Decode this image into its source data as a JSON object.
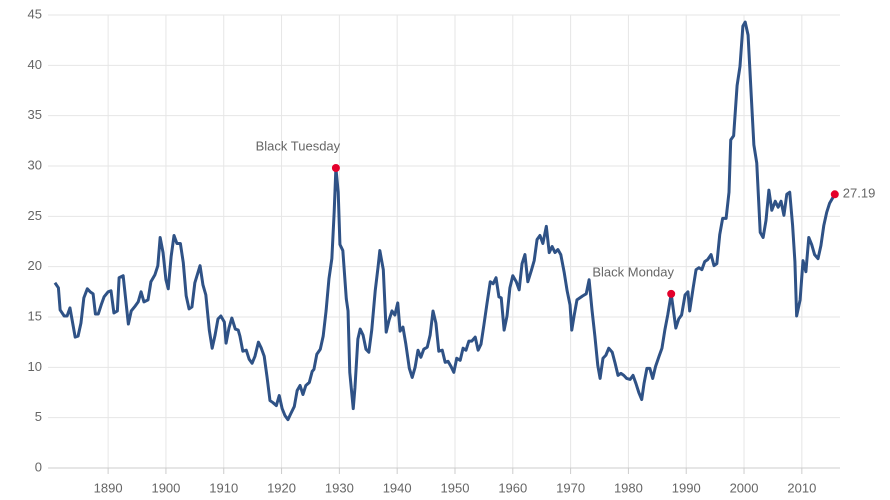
{
  "chart_data": {
    "type": "line",
    "color": "#2f5286",
    "marker_color": "#e4002b",
    "grid": true,
    "xlim": [
      1879.6,
      2016.6
    ],
    "xticks": [
      1890,
      1900,
      1910,
      1920,
      1930,
      1940,
      1950,
      1960,
      1970,
      1980,
      1990,
      2000,
      2010
    ],
    "ylim": [
      0,
      45
    ],
    "yticks": [
      0,
      5,
      10,
      15,
      20,
      25,
      30,
      35,
      40,
      45
    ],
    "x": [
      1880.8,
      1881.4,
      1881.7,
      1882.4,
      1882.9,
      1883.4,
      1884.3,
      1884.8,
      1885.3,
      1885.8,
      1886.4,
      1886.9,
      1887.4,
      1887.8,
      1888.3,
      1888.8,
      1889.3,
      1890,
      1890.5,
      1891,
      1891.6,
      1891.9,
      1892.6,
      1893.5,
      1894,
      1894.7,
      1895.2,
      1895.7,
      1896.2,
      1896.9,
      1897.4,
      1898.1,
      1898.6,
      1899,
      1899.5,
      1900,
      1900.4,
      1900.9,
      1901.4,
      1901.9,
      1902.5,
      1903,
      1903.5,
      1904,
      1904.5,
      1905,
      1905.9,
      1906.4,
      1906.9,
      1907.5,
      1908,
      1908.5,
      1909,
      1909.5,
      1910.1,
      1910.4,
      1910.9,
      1911.4,
      1912,
      1912.5,
      1912.8,
      1913.3,
      1913.9,
      1914.4,
      1914.9,
      1915.4,
      1916,
      1916.5,
      1917,
      1917.5,
      1918,
      1918.5,
      1919.1,
      1919.6,
      1920.1,
      1920.6,
      1921.1,
      1921.6,
      1922.2,
      1922.7,
      1923.2,
      1923.7,
      1924.2,
      1924.8,
      1925.3,
      1925.6,
      1926.1,
      1926.7,
      1927.2,
      1927.7,
      1928.2,
      1928.7,
      1929.1,
      1929.4,
      1929.8,
      1930.1,
      1930.6,
      1931.2,
      1931.5,
      1931.8,
      1932.4,
      1932.7,
      1933.2,
      1933.6,
      1934.1,
      1934.6,
      1935.1,
      1935.6,
      1936.2,
      1936.7,
      1937,
      1937.6,
      1938.1,
      1938.6,
      1939.1,
      1939.6,
      1940.1,
      1940.5,
      1941,
      1941.5,
      1942.1,
      1942.6,
      1943.1,
      1943.6,
      1944.1,
      1944.6,
      1945.2,
      1945.7,
      1946.2,
      1946.7,
      1947.2,
      1947.8,
      1948.3,
      1948.8,
      1949.3,
      1949.8,
      1950.3,
      1950.9,
      1951.4,
      1951.9,
      1952.4,
      1952.9,
      1953.5,
      1954,
      1954.5,
      1955,
      1955.5,
      1956.1,
      1956.6,
      1957.1,
      1957.6,
      1958,
      1958.5,
      1959,
      1959.5,
      1960,
      1960.6,
      1961.1,
      1961.6,
      1962.1,
      1962.6,
      1963.2,
      1963.7,
      1964.2,
      1964.7,
      1965.2,
      1965.8,
      1966.3,
      1966.8,
      1967.3,
      1967.8,
      1968.3,
      1968.9,
      1969.4,
      1969.9,
      1970.2,
      1970.6,
      1971.1,
      1971.6,
      1972.1,
      1972.7,
      1973.2,
      1973.7,
      1974.2,
      1974.7,
      1975.1,
      1975.6,
      1976.1,
      1976.6,
      1977.2,
      1977.7,
      1978.2,
      1978.7,
      1979.2,
      1979.7,
      1980.3,
      1980.8,
      1981.3,
      1981.8,
      1982.3,
      1982.7,
      1983.2,
      1983.7,
      1984.2,
      1984.7,
      1985.3,
      1985.8,
      1986.3,
      1986.8,
      1987.4,
      1988.2,
      1988.7,
      1989.2,
      1989.8,
      1990.3,
      1990.6,
      1991.2,
      1991.7,
      1992.2,
      1992.7,
      1993.2,
      1993.7,
      1994.3,
      1994.8,
      1995.3,
      1995.8,
      1996.3,
      1996.9,
      1997.4,
      1997.7,
      1998.2,
      1998.8,
      1999.3,
      1999.8,
      2000.2,
      2000.7,
      2001.2,
      2001.7,
      2002.2,
      2002.8,
      2003.3,
      2003.8,
      2004.3,
      2004.8,
      2005.4,
      2005.9,
      2006.4,
      2006.9,
      2007.4,
      2007.9,
      2008.4,
      2008.8,
      2009.1,
      2009.7,
      2010.2,
      2010.7,
      2011.2,
      2011.7,
      2012.2,
      2012.8,
      2013.3,
      2013.8,
      2014.3,
      2014.8,
      2015.7
    ],
    "values": [
      18.4,
      17.9,
      15.7,
      15.1,
      15.1,
      15.9,
      13,
      13.1,
      14.4,
      16.9,
      17.8,
      17.5,
      17.3,
      15.3,
      15.3,
      16.2,
      17,
      17.5,
      17.6,
      15.4,
      15.6,
      18.9,
      19.1,
      14.3,
      15.6,
      16.1,
      16.5,
      17.5,
      16.5,
      16.7,
      18.5,
      19.2,
      20.1,
      22.9,
      21.4,
      18.7,
      17.8,
      21,
      23.1,
      22.3,
      22.3,
      20.4,
      17.1,
      15.8,
      16,
      18.4,
      20.1,
      18.2,
      17.2,
      13.7,
      11.9,
      13.2,
      14.8,
      15.1,
      14.5,
      12.4,
      13.9,
      14.9,
      13.8,
      13.7,
      13.1,
      11.6,
      11.7,
      10.8,
      10.4,
      11.1,
      12.5,
      11.9,
      11.1,
      9,
      6.7,
      6.5,
      6.2,
      7.2,
      5.9,
      5.2,
      4.8,
      5.4,
      6.1,
      7.7,
      8.2,
      7.3,
      8.2,
      8.5,
      9.6,
      9.8,
      11.3,
      11.8,
      13.1,
      15.6,
      18.8,
      20.8,
      25.4,
      29.8,
      27.4,
      22.2,
      21.6,
      16.8,
      15.6,
      9.5,
      5.9,
      8,
      12.8,
      13.8,
      13.2,
      11.8,
      11.5,
      13.7,
      17.6,
      20,
      21.6,
      19.7,
      13.5,
      14.7,
      15.6,
      15.2,
      16.4,
      13.6,
      14,
      12.3,
      9.9,
      9,
      10,
      11.7,
      11,
      11.8,
      12,
      13.2,
      15.6,
      14.4,
      11.6,
      11.7,
      10.5,
      10.6,
      10.1,
      9.5,
      10.9,
      10.7,
      11.9,
      11.7,
      12.6,
      12.6,
      13,
      11.7,
      12.3,
      14.2,
      16.2,
      18.5,
      18.3,
      18.9,
      17,
      16.9,
      13.7,
      15.1,
      17.9,
      19.1,
      18.5,
      17.7,
      20.3,
      21.2,
      18.5,
      19.6,
      20.6,
      22.7,
      23.1,
      22.3,
      24,
      21.4,
      22,
      21.4,
      21.7,
      21.2,
      19.4,
      17.6,
      16.2,
      13.7,
      15.1,
      16.7,
      16.9,
      17.1,
      17.3,
      18.7,
      15.7,
      13.1,
      10.2,
      8.9,
      10.9,
      11.2,
      11.9,
      11.5,
      10.4,
      9.2,
      9.4,
      9.2,
      8.9,
      8.8,
      9.2,
      8.4,
      7.5,
      6.8,
      8.4,
      9.9,
      9.9,
      8.9,
      10.1,
      11.1,
      11.9,
      13.7,
      15.2,
      17.3,
      13.9,
      14.8,
      15.2,
      17.2,
      17.5,
      15.6,
      17.9,
      19.7,
      19.9,
      19.7,
      20.5,
      20.7,
      21.2,
      20.1,
      20.3,
      23.2,
      24.8,
      24.8,
      27.4,
      32.6,
      33,
      38,
      39.9,
      43.9,
      44.3,
      43,
      37.5,
      32.1,
      30.3,
      23.4,
      22.9,
      24.6,
      27.6,
      25.6,
      26.5,
      25.9,
      26.5,
      25.1,
      27.2,
      27.4,
      24.1,
      20.5,
      15.1,
      16.7,
      20.6,
      19.5,
      22.9,
      22.2,
      21.2,
      20.8,
      22.1,
      24.1,
      25.4,
      26.3,
      27.19
    ],
    "annotations": [
      {
        "label": "Black Tuesday",
        "x": 1929.4,
        "y": 29.8,
        "placement": "above"
      },
      {
        "label": "Black Monday",
        "x": 1987.4,
        "y": 17.3,
        "placement": "above"
      },
      {
        "label": "27.19",
        "x": 2015.7,
        "y": 27.19,
        "placement": "right"
      }
    ]
  }
}
